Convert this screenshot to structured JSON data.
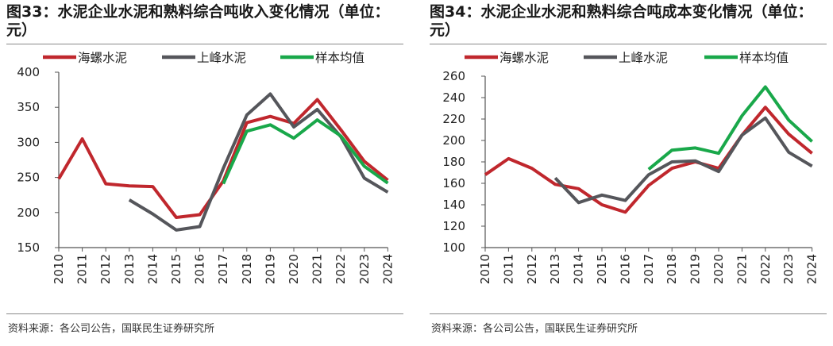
{
  "chart_data": [
    {
      "type": "line",
      "title": "图33：水泥企业水泥和熟料综合吨收入变化情况（单位：元）",
      "source": "资料来源：各公司公告，国联民生证券研究所",
      "categories": [
        "2010",
        "2011",
        "2012",
        "2013",
        "2014",
        "2015",
        "2016",
        "2017",
        "2018",
        "2019",
        "2020",
        "2021",
        "2022",
        "2023",
        "2024"
      ],
      "ylim": [
        150,
        400
      ],
      "yticks": [
        150,
        200,
        250,
        300,
        350,
        400
      ],
      "legend_position": "top",
      "series": [
        {
          "name": "海螺水泥",
          "color": "#c0272d",
          "values": [
            248,
            305,
            241,
            238,
            237,
            193,
            197,
            245,
            328,
            337,
            327,
            361,
            318,
            273,
            246
          ]
        },
        {
          "name": "上峰水泥",
          "color": "#55565b",
          "values": [
            null,
            null,
            null,
            218,
            198,
            175,
            180,
            263,
            339,
            369,
            322,
            347,
            308,
            249,
            229
          ]
        },
        {
          "name": "样本均值",
          "color": "#19a84a",
          "values": [
            null,
            null,
            null,
            null,
            null,
            null,
            null,
            241,
            316,
            325,
            306,
            332,
            309,
            266,
            242
          ]
        }
      ]
    },
    {
      "type": "line",
      "title": "图34：水泥企业水泥和熟料综合吨成本变化情况（单位：元）",
      "source": "资料来源：各公司公告，国联民生证券研究所",
      "categories": [
        "2010",
        "2011",
        "2012",
        "2013",
        "2014",
        "2015",
        "2016",
        "2017",
        "2018",
        "2019",
        "2020",
        "2021",
        "2022",
        "2023",
        "2024"
      ],
      "ylim": [
        100,
        260
      ],
      "yticks": [
        100,
        120,
        140,
        160,
        180,
        200,
        220,
        240,
        260
      ],
      "legend_position": "top",
      "series": [
        {
          "name": "海螺水泥",
          "color": "#c0272d",
          "values": [
            168,
            183,
            174,
            159,
            155,
            140,
            133,
            158,
            174,
            180,
            174,
            205,
            231,
            206,
            188
          ]
        },
        {
          "name": "上峰水泥",
          "color": "#55565b",
          "values": [
            null,
            null,
            null,
            165,
            142,
            149,
            144,
            168,
            180,
            181,
            171,
            205,
            221,
            189,
            176
          ]
        },
        {
          "name": "样本均值",
          "color": "#19a84a",
          "values": [
            null,
            null,
            null,
            null,
            null,
            null,
            null,
            173,
            191,
            193,
            188,
            223,
            250,
            219,
            199
          ]
        }
      ]
    }
  ]
}
